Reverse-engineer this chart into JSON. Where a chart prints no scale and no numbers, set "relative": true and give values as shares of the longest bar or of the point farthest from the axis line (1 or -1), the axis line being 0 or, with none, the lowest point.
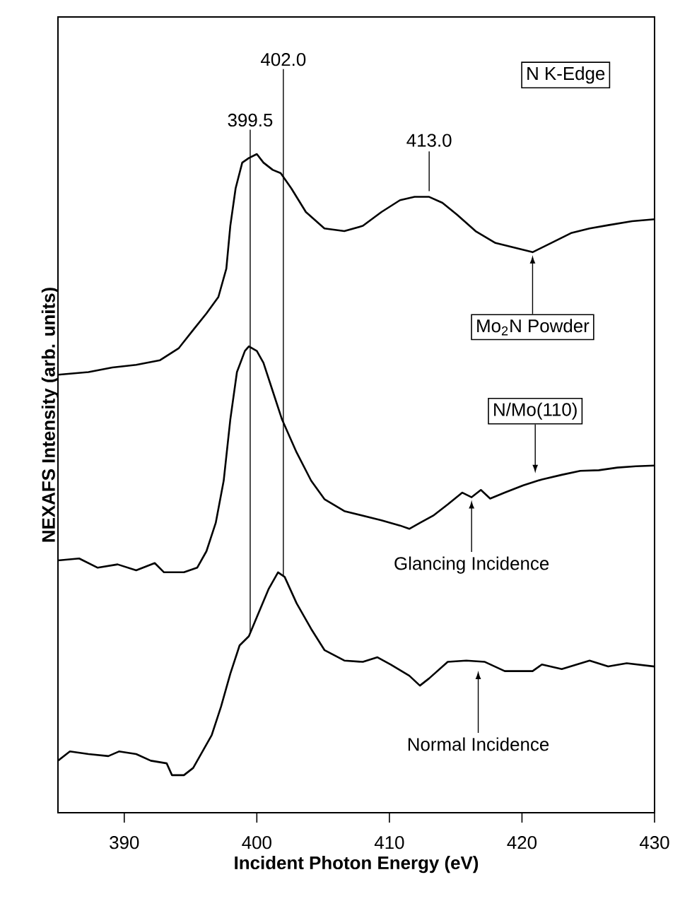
{
  "chart_data": {
    "type": "line",
    "relative": true,
    "xlabel": "Incident Photon Energy (eV)",
    "ylabel": "NEXAFS Intensity (arb. units)",
    "xlim": [
      385,
      430
    ],
    "xticks": [
      390,
      400,
      410,
      420,
      430
    ],
    "marker": "none",
    "line_style": "solid",
    "series": [
      {
        "color": "#000000",
        "x": [
          385.0,
          387.3,
          389.1,
          390.9,
          392.7,
          394.1,
          395.2,
          396.2,
          397.1,
          397.7,
          398.0,
          398.4,
          398.9,
          399.4,
          400.0,
          400.5,
          401.2,
          401.8,
          402.6,
          403.7,
          405.1,
          406.6,
          408.0,
          409.4,
          410.8,
          411.9,
          413.0,
          414.0,
          415.1,
          416.5,
          418.0,
          419.4,
          420.8,
          422.2,
          423.7,
          425.1,
          426.5,
          428.3,
          430.0
        ],
        "values": [
          0.665,
          0.669,
          0.676,
          0.68,
          0.687,
          0.705,
          0.733,
          0.758,
          0.783,
          0.826,
          0.891,
          0.948,
          0.987,
          0.994,
          1.0,
          0.987,
          0.976,
          0.971,
          0.948,
          0.912,
          0.887,
          0.883,
          0.891,
          0.912,
          0.93,
          0.935,
          0.935,
          0.926,
          0.908,
          0.883,
          0.865,
          0.858,
          0.851,
          0.865,
          0.88,
          0.887,
          0.892,
          0.898,
          0.901
        ]
      },
      {
        "color": "#000000",
        "x": [
          385.0,
          386.6,
          388.0,
          389.5,
          390.9,
          392.3,
          393.0,
          394.5,
          395.5,
          396.2,
          396.9,
          397.5,
          398.0,
          398.5,
          399.1,
          399.4,
          400.0,
          400.5,
          401.2,
          401.9,
          403.0,
          404.1,
          405.1,
          406.6,
          408.0,
          409.4,
          410.8,
          411.5,
          412.3,
          413.3,
          414.4,
          415.5,
          416.2,
          416.9,
          417.6,
          418.7,
          420.1,
          421.5,
          423.0,
          424.4,
          425.8,
          427.2,
          428.6,
          430.0
        ],
        "values": [
          0.383,
          0.386,
          0.372,
          0.377,
          0.368,
          0.379,
          0.365,
          0.365,
          0.372,
          0.397,
          0.44,
          0.504,
          0.597,
          0.669,
          0.701,
          0.708,
          0.701,
          0.683,
          0.64,
          0.597,
          0.547,
          0.504,
          0.476,
          0.458,
          0.451,
          0.444,
          0.436,
          0.431,
          0.44,
          0.451,
          0.468,
          0.486,
          0.479,
          0.49,
          0.477,
          0.486,
          0.497,
          0.506,
          0.513,
          0.519,
          0.52,
          0.524,
          0.526,
          0.527
        ]
      },
      {
        "color": "#000000",
        "x": [
          385.0,
          385.9,
          387.3,
          388.8,
          389.6,
          390.9,
          392.0,
          393.2,
          393.6,
          394.5,
          395.2,
          395.9,
          396.6,
          397.3,
          398.0,
          398.7,
          399.4,
          400.0,
          400.9,
          401.6,
          402.1,
          403.0,
          404.1,
          405.1,
          406.6,
          408.0,
          409.1,
          410.1,
          411.5,
          412.3,
          413.0,
          414.4,
          415.8,
          417.2,
          418.7,
          420.8,
          421.5,
          423.0,
          425.1,
          426.5,
          427.9,
          430.0
        ],
        "values": [
          0.079,
          0.093,
          0.089,
          0.086,
          0.093,
          0.089,
          0.079,
          0.075,
          0.057,
          0.057,
          0.068,
          0.093,
          0.118,
          0.161,
          0.211,
          0.254,
          0.268,
          0.297,
          0.34,
          0.365,
          0.358,
          0.318,
          0.279,
          0.247,
          0.231,
          0.229,
          0.236,
          0.225,
          0.208,
          0.193,
          0.204,
          0.229,
          0.231,
          0.229,
          0.215,
          0.215,
          0.225,
          0.218,
          0.231,
          0.222,
          0.227,
          0.222
        ]
      }
    ],
    "ref_lines": [
      {
        "axis": "x",
        "value": 399.5,
        "label": "399.5"
      },
      {
        "axis": "x",
        "value": 402.0,
        "label": "402.0"
      }
    ],
    "annotations": [
      "N K-Edge",
      {
        "text": "413.0",
        "x": 413.0,
        "y": 0.935
      },
      {
        "text": "Mo$_{2}$N Powder",
        "x": 420.8,
        "y": 0.851
      },
      {
        "text": "N/Mo(110)",
        "x": 421.0,
        "y": 0.511
      },
      {
        "text": "Glancing Incidence",
        "x": 416.2,
        "y": 0.479
      },
      {
        "text": "Normal Incidence",
        "x": 416.7,
        "y": 0.22
      }
    ]
  }
}
